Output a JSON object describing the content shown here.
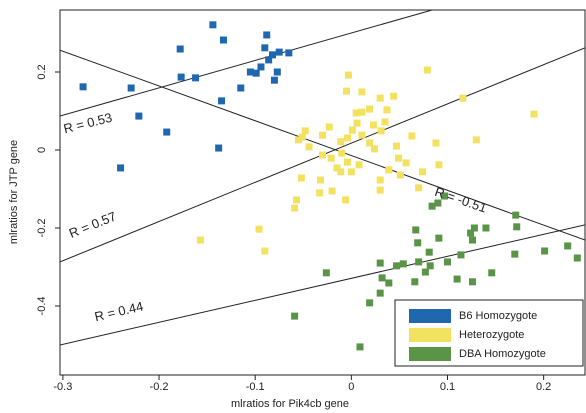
{
  "chart_data": {
    "type": "scatter",
    "xlabel": "mlratios for Pik4cb gene",
    "ylabel": "mlratios for JTP gene",
    "xlim": [
      -0.303,
      0.243
    ],
    "ylim": [
      -0.577,
      0.359
    ],
    "xticks": [
      -0.3,
      -0.2,
      -0.1,
      0.0,
      0.1,
      0.2
    ],
    "yticks": [
      -0.4,
      -0.2,
      0.0,
      0.2
    ],
    "legend": "lower right",
    "series": [
      {
        "name": "B6 Homozygote",
        "color": "#1f68b0",
        "x": [
          -0.279,
          -0.229,
          -0.178,
          -0.144,
          -0.177,
          -0.162,
          -0.133,
          -0.135,
          -0.221,
          -0.192,
          -0.24,
          -0.138,
          -0.115,
          -0.105,
          -0.099,
          -0.094,
          -0.088,
          -0.09,
          -0.086,
          -0.082,
          -0.077,
          -0.075,
          -0.065,
          -0.08
        ],
        "y": [
          0.162,
          0.159,
          0.259,
          0.321,
          0.187,
          0.185,
          0.282,
          0.126,
          0.087,
          0.046,
          -0.046,
          0.005,
          0.159,
          0.2,
          0.197,
          0.213,
          0.295,
          0.262,
          0.231,
          0.244,
          0.2,
          0.251,
          0.249,
          0.179
        ]
      },
      {
        "name": "Heterozygote",
        "color": "#f3e160",
        "x": [
          -0.003,
          0.011,
          -0.005,
          0.079,
          0.116,
          0.19,
          0.03,
          0.044,
          0.011,
          0.005,
          0.019,
          0.037,
          0.023,
          0.001,
          0.011,
          0.031,
          -0.004,
          -0.011,
          -0.051,
          -0.044,
          -0.055,
          -0.03,
          -0.021,
          -0.01,
          -0.004,
          -0.015,
          -0.011,
          0.0,
          0.008,
          0.024,
          0.047,
          0.049,
          0.057,
          0.039,
          0.03,
          0.051,
          0.074,
          0.091,
          0.13,
          0.088,
          -0.052,
          -0.032,
          -0.057,
          -0.059,
          -0.02,
          -0.033,
          -0.006,
          -0.096,
          -0.09,
          -0.157,
          0.006,
          0.019,
          -0.03,
          -0.048,
          -0.023,
          0.063,
          0.035,
          0.07,
          0.03
        ],
        "y": [
          0.192,
          0.149,
          0.151,
          0.205,
          0.133,
          0.092,
          0.133,
          0.138,
          0.097,
          0.095,
          0.105,
          0.103,
          0.064,
          0.051,
          0.038,
          0.049,
          0.031,
          0.021,
          0.033,
          0.008,
          0.026,
          -0.013,
          -0.021,
          -0.008,
          -0.031,
          -0.046,
          -0.056,
          -0.056,
          -0.038,
          0.003,
          0.01,
          -0.021,
          -0.033,
          -0.051,
          -0.077,
          -0.064,
          -0.056,
          -0.038,
          0.026,
          0.018,
          -0.072,
          -0.077,
          -0.128,
          -0.149,
          -0.105,
          -0.11,
          -0.128,
          -0.203,
          -0.259,
          -0.231,
          0.069,
          0.018,
          0.038,
          0.049,
          0.059,
          0.036,
          0.072,
          -0.097,
          -0.103
        ]
      },
      {
        "name": "DBA Homozygote",
        "color": "#5a9446",
        "x": [
          0.084,
          0.09,
          0.097,
          0.067,
          0.069,
          0.07,
          0.066,
          0.054,
          0.047,
          0.03,
          0.032,
          0.081,
          0.1,
          0.114,
          0.124,
          0.128,
          0.126,
          0.14,
          0.172,
          0.17,
          0.201,
          0.225,
          0.235,
          0.146,
          0.126,
          0.082,
          0.077,
          0.03,
          0.019,
          -0.026,
          -0.059,
          0.009,
          0.039,
          0.091,
          0.11,
          0.171
        ],
        "y": [
          -0.144,
          -0.136,
          -0.118,
          -0.205,
          -0.238,
          -0.287,
          -0.338,
          -0.292,
          -0.297,
          -0.29,
          -0.328,
          -0.262,
          -0.287,
          -0.269,
          -0.213,
          -0.2,
          -0.231,
          -0.2,
          -0.197,
          -0.267,
          -0.259,
          -0.246,
          -0.277,
          -0.315,
          -0.338,
          -0.297,
          -0.313,
          -0.367,
          -0.392,
          -0.315,
          -0.426,
          -0.505,
          -0.341,
          -0.226,
          -0.331,
          -0.167
        ]
      }
    ],
    "lines": [
      {
        "label": "R = 0.53",
        "x": [
          -0.303,
          0.084
        ],
        "y": [
          0.087,
          0.359
        ]
      },
      {
        "label": "R = 0.57",
        "x": [
          -0.303,
          0.243
        ],
        "y": [
          -0.287,
          0.262
        ]
      },
      {
        "label": "R = -0.51",
        "x": [
          -0.303,
          0.243
        ],
        "y": [
          0.256,
          -0.231
        ]
      },
      {
        "label": "R = 0.44",
        "x": [
          -0.303,
          0.243
        ],
        "y": [
          -0.5,
          -0.192
        ]
      }
    ]
  }
}
